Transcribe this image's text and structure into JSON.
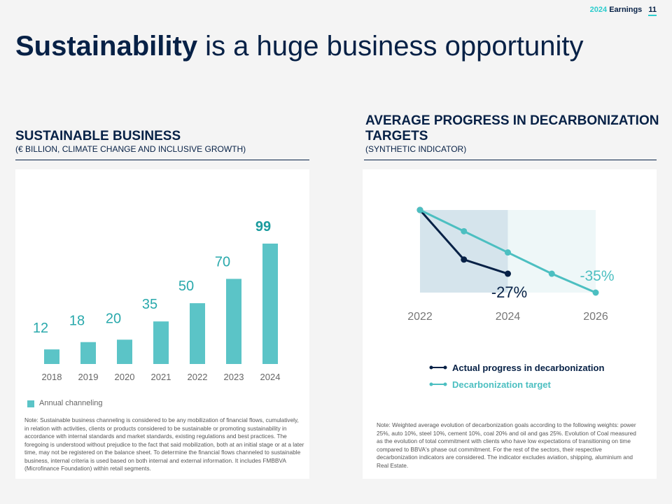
{
  "header": {
    "year": "2024",
    "label": "Earnings",
    "page": "11"
  },
  "title": {
    "bold": "Sustainability",
    "rest": " is a huge business opportunity"
  },
  "left": {
    "heading": "SUSTAINABLE BUSINESS",
    "subheading": "(€ BILLION, CLIMATE CHANGE AND INCLUSIVE GROWTH)",
    "legend": "Annual channeling",
    "note": "Note: Sustainable business channeling is considered to be any mobilization of financial flows, cumulatively, in relation with activities, clients or products considered to be sustainable or promoting sustainability in accordance with internal standards and market standards, existing regulations and best practices. The foregoing is understood without prejudice to the fact that said mobilization, both at an initial stage or at a later time, may not be registered on the balance sheet. To determine the financial flows channeled to sustainable business, internal criteria is used based on both internal and external information. It includes FMBBVA (Microfinance Foundation) within retail segments."
  },
  "right": {
    "heading_line1": "AVERAGE PROGRESS IN DECARBONIZATION",
    "heading_line2": "TARGETS",
    "subheading": "(SYNTHETIC INDICATOR)",
    "legend_actual": "Actual progress in decarbonization",
    "legend_target": "Decarbonization target",
    "note": "Note: Weighted average evolution of decarbonization goals according to the following weights: power 25%, auto 10%, steel 10%, cement 10%, coal 20% and oil and gas 25%. Evolution of Coal measured as the evolution of total commitment with clients who have low expectations of transitioning on time compared to BBVA's phase out commitment. For the rest of the sectors, their respective decarbonization indicators are considered. The indicator excludes aviation, shipping, aluminium and Real Estate."
  },
  "chart_data": [
    {
      "type": "bar",
      "title": "SUSTAINABLE BUSINESS",
      "categories": [
        "2018",
        "2019",
        "2020",
        "2021",
        "2022",
        "2023",
        "2024"
      ],
      "values": [
        12,
        18,
        20,
        35,
        50,
        70,
        99
      ],
      "labels": [
        "12",
        "18",
        "20",
        "35",
        "50",
        "70",
        "99"
      ],
      "series_name": "Annual channeling",
      "colors": {
        "bar": "#5bc4c7",
        "label": "#2aa9ac",
        "label_last": "#1a9b9e",
        "tick": "#666666"
      }
    },
    {
      "type": "line",
      "title": "AVERAGE PROGRESS IN DECARBONIZATION TARGETS",
      "x": [
        2022,
        2022.5,
        2023,
        2023.5,
        2024,
        2024.5,
        2025,
        2025.5,
        2026
      ],
      "xticks": [
        "2022",
        "2024",
        "2026"
      ],
      "xtick_values": [
        2022,
        2024,
        2026
      ],
      "xlim": [
        2022,
        2026
      ],
      "ylim": [
        -35,
        0
      ],
      "series": [
        {
          "name": "Actual progress in decarbonization",
          "points": [
            [
              2022,
              0
            ],
            [
              2023,
              -21
            ],
            [
              2024,
              -27
            ]
          ],
          "color": "#072146"
        },
        {
          "name": "Decarbonization target",
          "points": [
            [
              2022,
              0
            ],
            [
              2023,
              -9
            ],
            [
              2024,
              -18
            ],
            [
              2025,
              -27
            ],
            [
              2026,
              -35
            ]
          ],
          "color": "#4cbfc1"
        }
      ],
      "annotations": {
        "actual_end": "-27%",
        "target_end": "-35%"
      },
      "colors": {
        "shade_dark": "#d5e4ec",
        "shade_light": "#eef7f8",
        "tick": "#777777"
      }
    }
  ]
}
